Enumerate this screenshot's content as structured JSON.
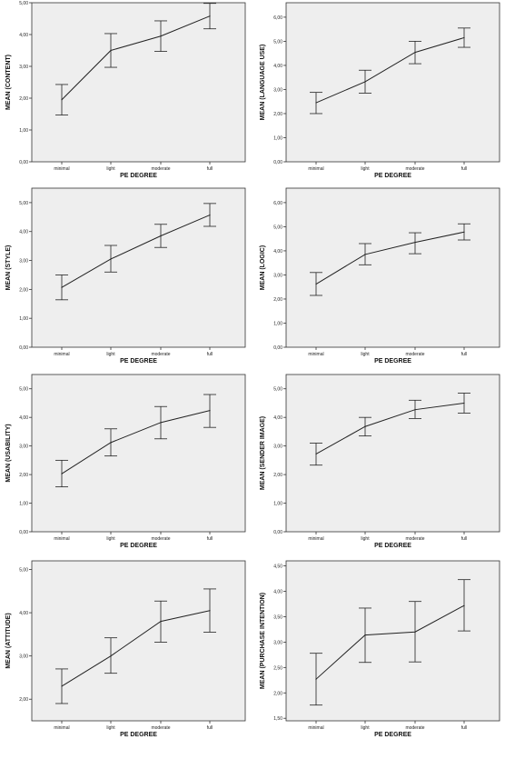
{
  "figure": {
    "panel_bg": "#eeeeee",
    "frame_color": "#333333",
    "line_color": "#222222"
  },
  "chart_data": [
    {
      "type": "line",
      "xlabel": "PE DEGREE",
      "ylabel": "MEAN (CONTENT)",
      "categories": [
        "minimal",
        "light",
        "moderate",
        "full"
      ],
      "ylim": [
        0,
        5
      ],
      "yticks": [
        "0,00",
        "1,00",
        "2,00",
        "3,00",
        "4,00",
        "5,00"
      ],
      "ytick_values": [
        0,
        1,
        2,
        3,
        4,
        5
      ],
      "series": [
        {
          "values": [
            1.95,
            3.5,
            3.95,
            4.58
          ],
          "error_low": [
            1.47,
            2.97,
            3.47,
            4.18
          ],
          "error_high": [
            2.43,
            4.03,
            4.43,
            4.98
          ]
        }
      ]
    },
    {
      "type": "line",
      "xlabel": "PE DEGREE",
      "ylabel": "MEAN (LANGUAGE USE)",
      "categories": [
        "minimal",
        "light",
        "moderate",
        "full"
      ],
      "ylim": [
        0,
        6.6
      ],
      "yticks": [
        "0,00",
        "1,00",
        "2,00",
        "3,00",
        "4,00",
        "5,00",
        "6,00"
      ],
      "ytick_values": [
        0,
        1,
        2,
        3,
        4,
        5,
        6
      ],
      "series": [
        {
          "values": [
            2.45,
            3.32,
            4.54,
            5.15
          ],
          "error_low": [
            2.0,
            2.85,
            4.07,
            4.75
          ],
          "error_high": [
            2.88,
            3.8,
            5.0,
            5.55
          ]
        }
      ]
    },
    {
      "type": "line",
      "xlabel": "PE DEGREE",
      "ylabel": "MEAN (STYLE)",
      "categories": [
        "minimal",
        "light",
        "moderate",
        "full"
      ],
      "ylim": [
        0,
        5.5
      ],
      "yticks": [
        "0,00",
        "1,00",
        "2,00",
        "3,00",
        "4,00",
        "5,00"
      ],
      "ytick_values": [
        0,
        1,
        2,
        3,
        4,
        5
      ],
      "series": [
        {
          "values": [
            2.07,
            3.05,
            3.85,
            4.57
          ],
          "error_low": [
            1.64,
            2.6,
            3.45,
            4.18
          ],
          "error_high": [
            2.5,
            3.52,
            4.25,
            4.97
          ]
        }
      ]
    },
    {
      "type": "line",
      "xlabel": "PE DEGREE",
      "ylabel": "MEAN (LOGIC)",
      "categories": [
        "minimal",
        "light",
        "moderate",
        "full"
      ],
      "ylim": [
        0,
        6.6
      ],
      "yticks": [
        "0,00",
        "1,00",
        "2,00",
        "3,00",
        "4,00",
        "5,00",
        "6,00"
      ],
      "ytick_values": [
        0,
        1,
        2,
        3,
        4,
        5,
        6
      ],
      "series": [
        {
          "values": [
            2.62,
            3.85,
            4.35,
            4.78
          ],
          "error_low": [
            2.15,
            3.42,
            3.88,
            4.45
          ],
          "error_high": [
            3.1,
            4.3,
            4.75,
            5.12
          ]
        }
      ]
    },
    {
      "type": "line",
      "xlabel": "PE DEGREE",
      "ylabel": "MEAN (USABILITY)",
      "categories": [
        "minimal",
        "light",
        "moderate",
        "full"
      ],
      "ylim": [
        0,
        5.5
      ],
      "yticks": [
        "0,00",
        "1,00",
        "2,00",
        "3,00",
        "4,00",
        "5,00"
      ],
      "ytick_values": [
        0,
        1,
        2,
        3,
        4,
        5
      ],
      "series": [
        {
          "values": [
            2.03,
            3.12,
            3.82,
            4.24
          ],
          "error_low": [
            1.57,
            2.65,
            3.25,
            3.65
          ],
          "error_high": [
            2.5,
            3.6,
            4.38,
            4.8
          ]
        }
      ]
    },
    {
      "type": "line",
      "xlabel": "PE DEGREE",
      "ylabel": "MEAN (SENDER IMAGE)",
      "categories": [
        "minimal",
        "light",
        "moderate",
        "full"
      ],
      "ylim": [
        0,
        5.5
      ],
      "yticks": [
        "0,00",
        "1,00",
        "2,00",
        "3,00",
        "4,00",
        "5,00"
      ],
      "ytick_values": [
        0,
        1,
        2,
        3,
        4,
        5
      ],
      "series": [
        {
          "values": [
            2.72,
            3.68,
            4.27,
            4.5
          ],
          "error_low": [
            2.33,
            3.35,
            3.96,
            4.15
          ],
          "error_high": [
            3.1,
            4.0,
            4.6,
            4.85
          ]
        }
      ]
    },
    {
      "type": "line",
      "xlabel": "PE DEGREE",
      "ylabel": "MEAN (ATTITUDE)",
      "categories": [
        "minimal",
        "light",
        "moderate",
        "full"
      ],
      "ylim": [
        1.5,
        5.2
      ],
      "yticks": [
        "2,00",
        "3,00",
        "4,00",
        "5,00"
      ],
      "ytick_values": [
        2,
        3,
        4,
        5
      ],
      "series": [
        {
          "values": [
            2.3,
            3.0,
            3.8,
            4.05
          ],
          "error_low": [
            1.9,
            2.6,
            3.32,
            3.55
          ],
          "error_high": [
            2.7,
            3.42,
            4.27,
            4.55
          ]
        }
      ]
    },
    {
      "type": "line",
      "xlabel": "PE DEGREE",
      "ylabel": "MEAN (PURCHASE INTENTION)",
      "categories": [
        "minimal",
        "light",
        "moderate",
        "full"
      ],
      "ylim": [
        1.45,
        4.6
      ],
      "yticks": [
        "1,50",
        "2,00",
        "2,50",
        "3,00",
        "3,50",
        "4,00",
        "4,50"
      ],
      "ytick_values": [
        1.5,
        2.0,
        2.5,
        3.0,
        3.5,
        4.0,
        4.5
      ],
      "series": [
        {
          "values": [
            2.27,
            3.14,
            3.2,
            3.72
          ],
          "error_low": [
            1.76,
            2.6,
            2.61,
            3.22
          ],
          "error_high": [
            2.78,
            3.67,
            3.8,
            4.23
          ]
        }
      ]
    }
  ]
}
